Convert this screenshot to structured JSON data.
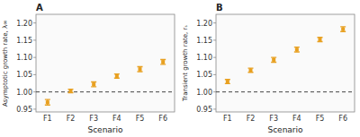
{
  "chart_data": [
    {
      "type": "errorbar",
      "title": "A",
      "xlabel": "Scenario",
      "ylabel": "Asymptotic growth rate, λ∞",
      "categories": [
        "F1",
        "F2",
        "F3",
        "F4",
        "F5",
        "F6"
      ],
      "values": [
        0.97,
        1.003,
        1.022,
        1.046,
        1.066,
        1.087
      ],
      "errors": [
        0.008,
        0.005,
        0.007,
        0.006,
        0.007,
        0.007
      ],
      "color": "#E8A020",
      "marker": "square",
      "hline": 1.0,
      "ylim": [
        0.942,
        1.225
      ],
      "yticks": [
        0.95,
        {
          "value": 1.0,
          "label": "1.00"
        },
        1.05,
        {
          "value": 1.1,
          "label": "1.10"
        },
        1.15,
        {
          "value": 1.2,
          "label": "1.20"
        }
      ]
    },
    {
      "type": "errorbar",
      "title": "B",
      "xlabel": "Scenario",
      "ylabel": "Transient growth rate, rₛ",
      "categories": [
        "F1",
        "F2",
        "F3",
        "F4",
        "F5",
        "F6"
      ],
      "values": [
        1.03,
        1.063,
        1.093,
        1.123,
        1.152,
        1.182
      ],
      "errors": [
        0.006,
        0.006,
        0.007,
        0.007,
        0.006,
        0.007
      ],
      "color": "#E8A020",
      "marker": "square",
      "hline": 1.0,
      "ylim": [
        0.942,
        1.225
      ],
      "yticks": [
        0.95,
        {
          "value": 1.0,
          "label": "1.00"
        },
        1.05,
        {
          "value": 1.1,
          "label": "1.10"
        },
        1.15,
        {
          "value": 1.2,
          "label": "1.20"
        }
      ]
    }
  ]
}
